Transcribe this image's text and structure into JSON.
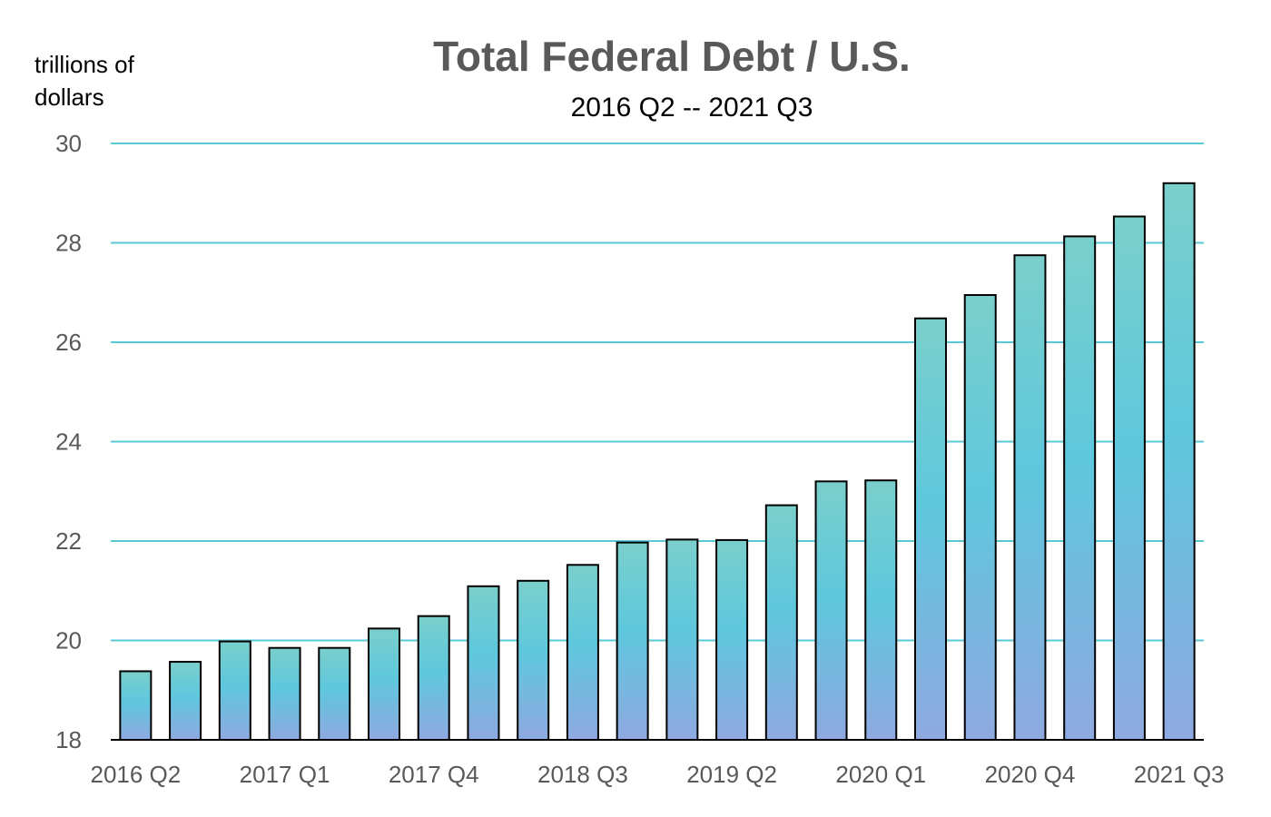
{
  "chart_data": {
    "type": "bar",
    "title": "Total Federal Debt / U.S.",
    "subtitle": "2016 Q2 -- 2021 Q3",
    "ylabel_lines": [
      "trillions of",
      "dollars"
    ],
    "xlabel": "",
    "ylim": [
      18,
      30
    ],
    "yticks": [
      18,
      20,
      22,
      24,
      26,
      28,
      30
    ],
    "grid": true,
    "categories": [
      "2016 Q2",
      "2016 Q3",
      "2016 Q4",
      "2017 Q1",
      "2017 Q2",
      "2017 Q3",
      "2017 Q4",
      "2018 Q1",
      "2018 Q2",
      "2018 Q3",
      "2018 Q4",
      "2019 Q1",
      "2019 Q2",
      "2019 Q3",
      "2019 Q4",
      "2020 Q1",
      "2020 Q2",
      "2020 Q3",
      "2020 Q4",
      "2021 Q1",
      "2021 Q2",
      "2021 Q3"
    ],
    "xtick_labels_shown": [
      "2016 Q2",
      "2017 Q1",
      "2017 Q4",
      "2018 Q3",
      "2019 Q2",
      "2020 Q1",
      "2020 Q4",
      "2021 Q3"
    ],
    "values": [
      19.38,
      19.57,
      19.98,
      19.85,
      19.85,
      20.24,
      20.49,
      21.09,
      21.2,
      21.52,
      21.97,
      22.03,
      22.02,
      22.72,
      23.2,
      23.22,
      26.48,
      26.95,
      27.75,
      28.13,
      28.53,
      29.2
    ],
    "colors": {
      "bar_top": "#7ACFCB",
      "bar_mid": "#5EC7DD",
      "bar_bottom": "#8FA9E0",
      "grid": "#5BC8D6",
      "title": "#595959"
    }
  }
}
